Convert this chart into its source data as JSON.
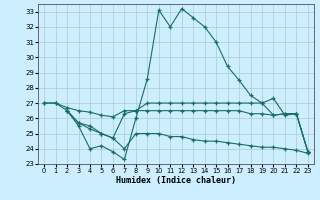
{
  "xlabel": "Humidex (Indice chaleur)",
  "xlim": [
    -0.5,
    23.5
  ],
  "ylim": [
    23,
    33.5
  ],
  "yticks": [
    23,
    24,
    25,
    26,
    27,
    28,
    29,
    30,
    31,
    32,
    33
  ],
  "xticks": [
    0,
    1,
    2,
    3,
    4,
    5,
    6,
    7,
    8,
    9,
    10,
    11,
    12,
    13,
    14,
    15,
    16,
    17,
    18,
    19,
    20,
    21,
    22,
    23
  ],
  "bg_color": "#cceeff",
  "grid_color": "#aacccc",
  "line_color": "#1a6b6b",
  "curve1_x": [
    0,
    1,
    2,
    3,
    4,
    5,
    6,
    7,
    8,
    9,
    10,
    11,
    12,
    13,
    14,
    15,
    16,
    17,
    18,
    19,
    20,
    21,
    22,
    23
  ],
  "curve1_y": [
    27.0,
    27.0,
    26.5,
    25.5,
    24.0,
    24.2,
    23.8,
    23.3,
    26.0,
    28.6,
    33.1,
    32.0,
    33.2,
    32.6,
    32.0,
    31.0,
    29.4,
    28.5,
    27.5,
    27.0,
    27.3,
    26.2,
    26.3,
    23.8
  ],
  "curve2_x": [
    0,
    1,
    2,
    3,
    4,
    5,
    6,
    7,
    8,
    9,
    10,
    11,
    12,
    13,
    14,
    15,
    16,
    17,
    18,
    19,
    20,
    21,
    22,
    23
  ],
  "curve2_y": [
    27.0,
    27.0,
    26.7,
    26.5,
    26.4,
    26.2,
    26.1,
    26.5,
    26.5,
    27.0,
    27.0,
    27.0,
    27.0,
    27.0,
    27.0,
    27.0,
    27.0,
    27.0,
    27.0,
    27.0,
    26.2,
    26.3,
    26.3,
    23.8
  ],
  "curve3_x": [
    2,
    3,
    4,
    5,
    6,
    7,
    8,
    9,
    10,
    11,
    12,
    13,
    14,
    15,
    16,
    17,
    18,
    19,
    20,
    21,
    22,
    23
  ],
  "curve3_y": [
    26.5,
    25.7,
    25.5,
    25.0,
    24.7,
    26.3,
    26.5,
    26.5,
    26.5,
    26.5,
    26.5,
    26.5,
    26.5,
    26.5,
    26.5,
    26.5,
    26.3,
    26.3,
    26.2,
    26.3,
    26.3,
    23.8
  ],
  "curve4_x": [
    2,
    3,
    4,
    5,
    6,
    7,
    8,
    9,
    10,
    11,
    12,
    13,
    14,
    15,
    16,
    17,
    18,
    19,
    20,
    21,
    22,
    23
  ],
  "curve4_y": [
    26.5,
    25.7,
    25.3,
    25.0,
    24.7,
    24.0,
    25.0,
    25.0,
    25.0,
    24.8,
    24.8,
    24.6,
    24.5,
    24.5,
    24.4,
    24.3,
    24.2,
    24.1,
    24.1,
    24.0,
    23.9,
    23.7
  ]
}
